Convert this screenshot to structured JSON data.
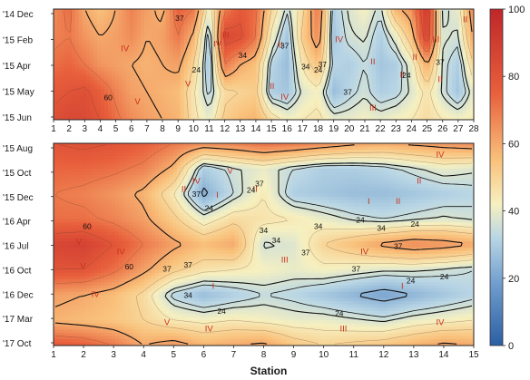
{
  "chart_data": [
    {
      "type": "heatmap",
      "panel": "upper",
      "xlabel": "",
      "x_ticks": [
        "1",
        "2",
        "3",
        "4",
        "5",
        "6",
        "7",
        "8",
        "9",
        "10",
        "11",
        "12",
        "13",
        "14",
        "15",
        "16",
        "17",
        "18",
        "19",
        "20",
        "21",
        "22",
        "23",
        "24",
        "25",
        "26",
        "27",
        "28"
      ],
      "y_ticks": [
        "'14 Dec",
        "'15 Feb",
        "'15 Apr",
        "'15 May",
        "'15 Jun"
      ],
      "xlim": [
        1,
        28
      ],
      "colormap": [
        "#2b5fa3",
        "#6f9ccc",
        "#b9d6e5",
        "#f6f0c0",
        "#f9c27c",
        "#e8603c",
        "#c0262a"
      ],
      "grid": [
        [
          66,
          72,
          60,
          55,
          60,
          68,
          62,
          58,
          75,
          70,
          40,
          68,
          78,
          72,
          50,
          35,
          48,
          70,
          30,
          38,
          42,
          35,
          58,
          65,
          92,
          35,
          40,
          68
        ],
        [
          68,
          70,
          64,
          60,
          62,
          66,
          60,
          62,
          70,
          58,
          30,
          85,
          82,
          70,
          42,
          28,
          52,
          66,
          28,
          36,
          38,
          30,
          40,
          55,
          88,
          38,
          36,
          62
        ],
        [
          72,
          74,
          70,
          64,
          62,
          60,
          58,
          60,
          62,
          50,
          28,
          70,
          60,
          55,
          32,
          26,
          45,
          55,
          32,
          30,
          34,
          28,
          30,
          40,
          60,
          36,
          30,
          50
        ],
        [
          78,
          80,
          82,
          76,
          68,
          62,
          60,
          58,
          56,
          45,
          32,
          48,
          50,
          52,
          30,
          28,
          38,
          42,
          26,
          32,
          36,
          30,
          32,
          38,
          46,
          36,
          28,
          40
        ],
        [
          82,
          85,
          84,
          80,
          72,
          66,
          62,
          60,
          58,
          46,
          40,
          52,
          56,
          58,
          48,
          42,
          44,
          46,
          40,
          40,
          42,
          40,
          42,
          44,
          48,
          44,
          42,
          44
        ]
      ],
      "contour_labels": [
        "37",
        "37",
        "24",
        "24",
        "34",
        "34",
        "37",
        "60",
        "37",
        "24",
        "37"
      ],
      "zone_labels": [
        "IV",
        "IV",
        "IV",
        "V",
        "V",
        "III",
        "III",
        "IV",
        "II",
        "II",
        "II",
        "II",
        "II",
        "III",
        "II",
        "II"
      ]
    },
    {
      "type": "heatmap",
      "panel": "lower",
      "xlabel": "Station",
      "x_ticks": [
        "1",
        "2",
        "3",
        "4",
        "5",
        "6",
        "7",
        "8",
        "9",
        "10",
        "11",
        "12",
        "13",
        "14",
        "15"
      ],
      "y_ticks": [
        "'15 Aug",
        "'15 Oct",
        "'15 Dec",
        "'16 Apr",
        "'16 Jul",
        "'16 Oct",
        "'16 Dec",
        "'17 Mar",
        "'17 Oct"
      ],
      "xlim": [
        1,
        15
      ],
      "colormap": [
        "#2b5fa3",
        "#6f9ccc",
        "#b9d6e5",
        "#f6f0c0",
        "#f9c27c",
        "#e8603c",
        "#c0262a"
      ],
      "grid": [
        [
          80,
          82,
          80,
          76,
          70,
          66,
          68,
          72,
          70,
          66,
          62,
          60,
          62,
          64,
          66
        ],
        [
          74,
          74,
          72,
          68,
          58,
          30,
          36,
          40,
          34,
          30,
          30,
          32,
          36,
          40,
          38
        ],
        [
          70,
          68,
          64,
          58,
          44,
          22,
          34,
          44,
          30,
          28,
          26,
          26,
          28,
          30,
          32
        ],
        [
          72,
          72,
          68,
          62,
          52,
          40,
          48,
          46,
          44,
          40,
          36,
          34,
          36,
          38,
          36
        ],
        [
          86,
          88,
          80,
          70,
          62,
          56,
          60,
          36,
          38,
          50,
          56,
          62,
          66,
          64,
          60
        ],
        [
          80,
          80,
          72,
          62,
          52,
          46,
          44,
          42,
          40,
          42,
          40,
          38,
          38,
          36,
          34
        ],
        [
          62,
          60,
          56,
          48,
          32,
          26,
          30,
          34,
          32,
          28,
          24,
          20,
          24,
          28,
          32
        ],
        [
          58,
          56,
          54,
          50,
          44,
          42,
          44,
          42,
          40,
          40,
          38,
          36,
          40,
          42,
          44
        ],
        [
          78,
          76,
          70,
          60,
          64,
          58,
          60,
          62,
          54,
          50,
          52,
          54,
          58,
          62,
          60
        ]
      ],
      "contour_labels": [
        "60",
        "60",
        "37",
        "24",
        "37",
        "37",
        "24",
        "34",
        "37",
        "34",
        "34",
        "24",
        "34",
        "24",
        "37",
        "24",
        "24",
        "37",
        "37",
        "34",
        "24",
        "24"
      ],
      "zone_labels": [
        "IV",
        "IV",
        "IV",
        "V",
        "V",
        "V",
        "I",
        "II",
        "II",
        "I",
        "II",
        "IV",
        "II",
        "III",
        "I",
        "I",
        "IV",
        "IV",
        "IV",
        "III",
        "V"
      ]
    }
  ],
  "colorbar": {
    "ticks": [
      "0",
      "20",
      "40",
      "60",
      "80",
      "100"
    ],
    "range": [
      0,
      100
    ]
  }
}
